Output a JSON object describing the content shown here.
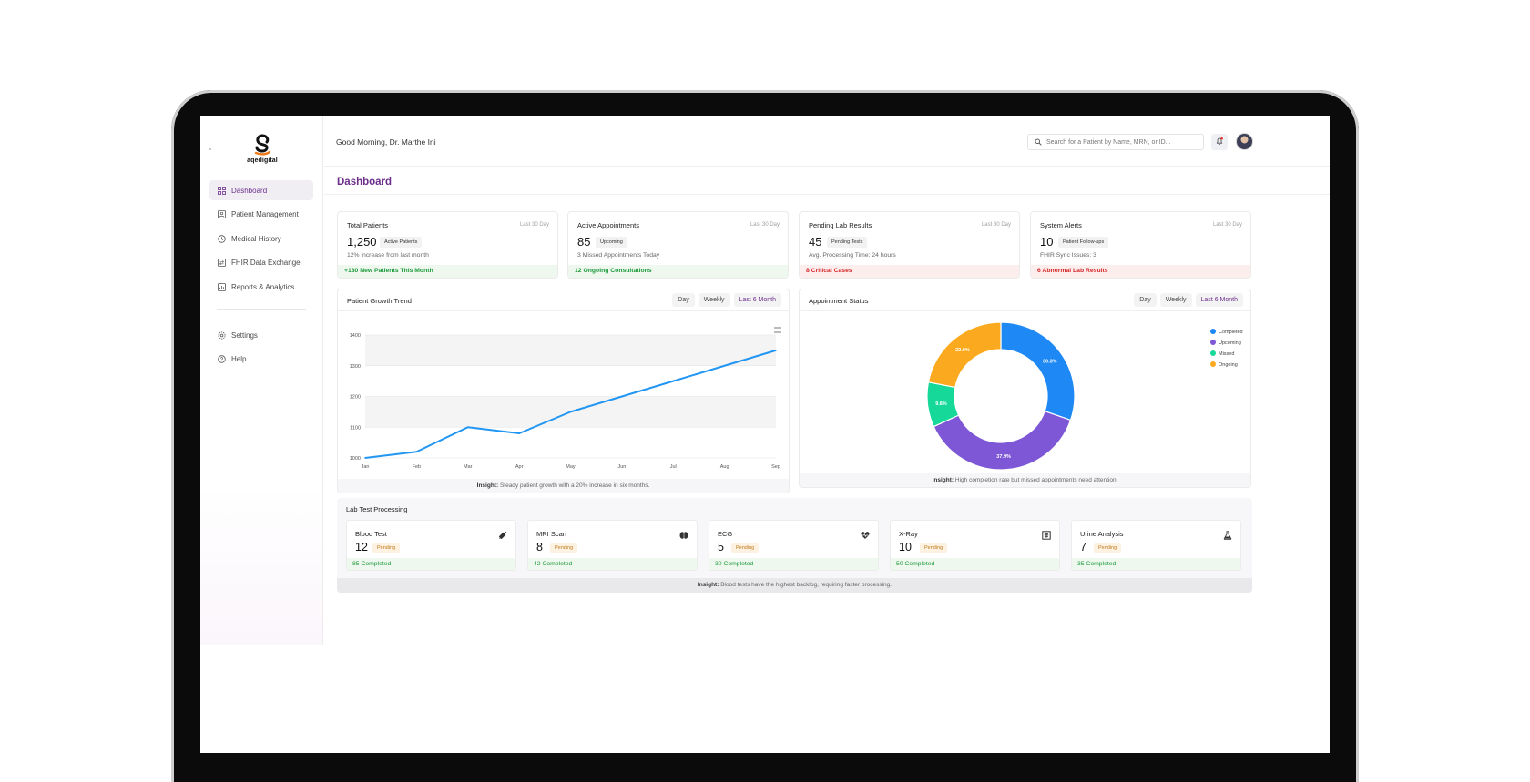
{
  "brand": {
    "name": "aqedigital"
  },
  "header": {
    "greeting": "Good Morning, Dr. Marthe Ini",
    "search_placeholder": "Search for a Patient by Name, MRN, or ID..."
  },
  "sidebar": {
    "items": [
      {
        "label": "Dashboard",
        "icon": "dashboard-icon",
        "active": true
      },
      {
        "label": "Patient Management",
        "icon": "patient-icon"
      },
      {
        "label": "Medical History",
        "icon": "history-icon"
      },
      {
        "label": "FHIR Data Exchange",
        "icon": "exchange-icon"
      },
      {
        "label": "Reports & Analytics",
        "icon": "reports-icon"
      }
    ],
    "secondary": [
      {
        "label": "Settings",
        "icon": "gear-icon"
      },
      {
        "label": "Help",
        "icon": "help-icon"
      }
    ]
  },
  "page": {
    "title": "Dashboard"
  },
  "stats": [
    {
      "title": "Total Patients",
      "period": "Last 30 Day",
      "value": "1,250",
      "badge": "Active Patients",
      "sub": "12% increase from last month",
      "footer": "+180 New Patients This Month",
      "footer_tone": "green"
    },
    {
      "title": "Active Appointments",
      "period": "Last 30 Day",
      "value": "85",
      "badge": "Upcoming",
      "sub": "3 Missed Appointments Today",
      "footer": "12 Ongoing Consultations",
      "footer_tone": "green"
    },
    {
      "title": "Pending Lab Results",
      "period": "Last 30 Day",
      "value": "45",
      "badge": "Pending Tests",
      "sub": "Avg. Processing Time: 24 hours",
      "footer": "8 Critical Cases",
      "footer_tone": "red"
    },
    {
      "title": "System Alerts",
      "period": "Last 30 Day",
      "value": "10",
      "badge": "Patient Follow-ups",
      "sub": "FHIR Sync Issues: 3",
      "footer": "6 Abnormal Lab Results",
      "footer_tone": "red"
    }
  ],
  "growth_panel": {
    "title": "Patient Growth Trend",
    "tabs": [
      "Day",
      "Weekly",
      "Last 6 Month"
    ],
    "active_tab": "Last 6 Month",
    "insight_label": "Insight:",
    "insight": "Steady patient growth with a 20% increase in six months."
  },
  "appointment_panel": {
    "title": "Appointment Status",
    "tabs": [
      "Day",
      "Weekly",
      "Last 6 Month"
    ],
    "active_tab": "Last 6 Month",
    "insight_label": "Insight:",
    "insight": "High completion rate but missed appointments need attention."
  },
  "chart_data": [
    {
      "type": "line",
      "x": [
        "Jan",
        "Feb",
        "Mar",
        "Apr",
        "May",
        "Jun",
        "Jul",
        "Aug",
        "Sep"
      ],
      "series": [
        {
          "values": [
            1000,
            1020,
            1100,
            1080,
            1150,
            1200,
            1250,
            1300,
            1350
          ]
        }
      ],
      "yticks": [
        1000,
        1100,
        1200,
        1300,
        1400
      ],
      "ylim": [
        1000,
        1400
      ],
      "color": "#2196f3",
      "grid": true
    },
    {
      "type": "pie",
      "donut": true,
      "categories": [
        "Completed",
        "Upcoming",
        "Missed",
        "Ongoing"
      ],
      "values": [
        30.3,
        37.9,
        9.8,
        22.0
      ],
      "labels": [
        "30.3%",
        "37.9%",
        "9.8%",
        "22.0%"
      ],
      "colors": [
        "#1e88f5",
        "#7e57d6",
        "#16d999",
        "#fbaa20"
      ],
      "legend": "top-right"
    }
  ],
  "lab": {
    "title": "Lab Test Processing",
    "tests": [
      {
        "name": "Blood Test",
        "value": "12",
        "badge": "Pending",
        "completed": "85 Completed",
        "icon": "syringe-icon"
      },
      {
        "name": "MRI Scan",
        "value": "8",
        "badge": "Pending",
        "completed": "42 Completed",
        "icon": "brain-icon"
      },
      {
        "name": "ECG",
        "value": "5",
        "badge": "Pending",
        "completed": "30 Completed",
        "icon": "heart-pulse-icon"
      },
      {
        "name": "X-Ray",
        "value": "10",
        "badge": "Pending",
        "completed": "50 Completed",
        "icon": "xray-icon"
      },
      {
        "name": "Urine Analysis",
        "value": "7",
        "badge": "Pending",
        "completed": "35 Completed",
        "icon": "flask-icon"
      }
    ],
    "insight_label": "Insight:",
    "insight": "Blood tests have the highest backlog, requiring faster processing."
  },
  "colors": {
    "accent": "#6b2e8c",
    "green": "#1d9a3a",
    "red": "#d62828"
  }
}
